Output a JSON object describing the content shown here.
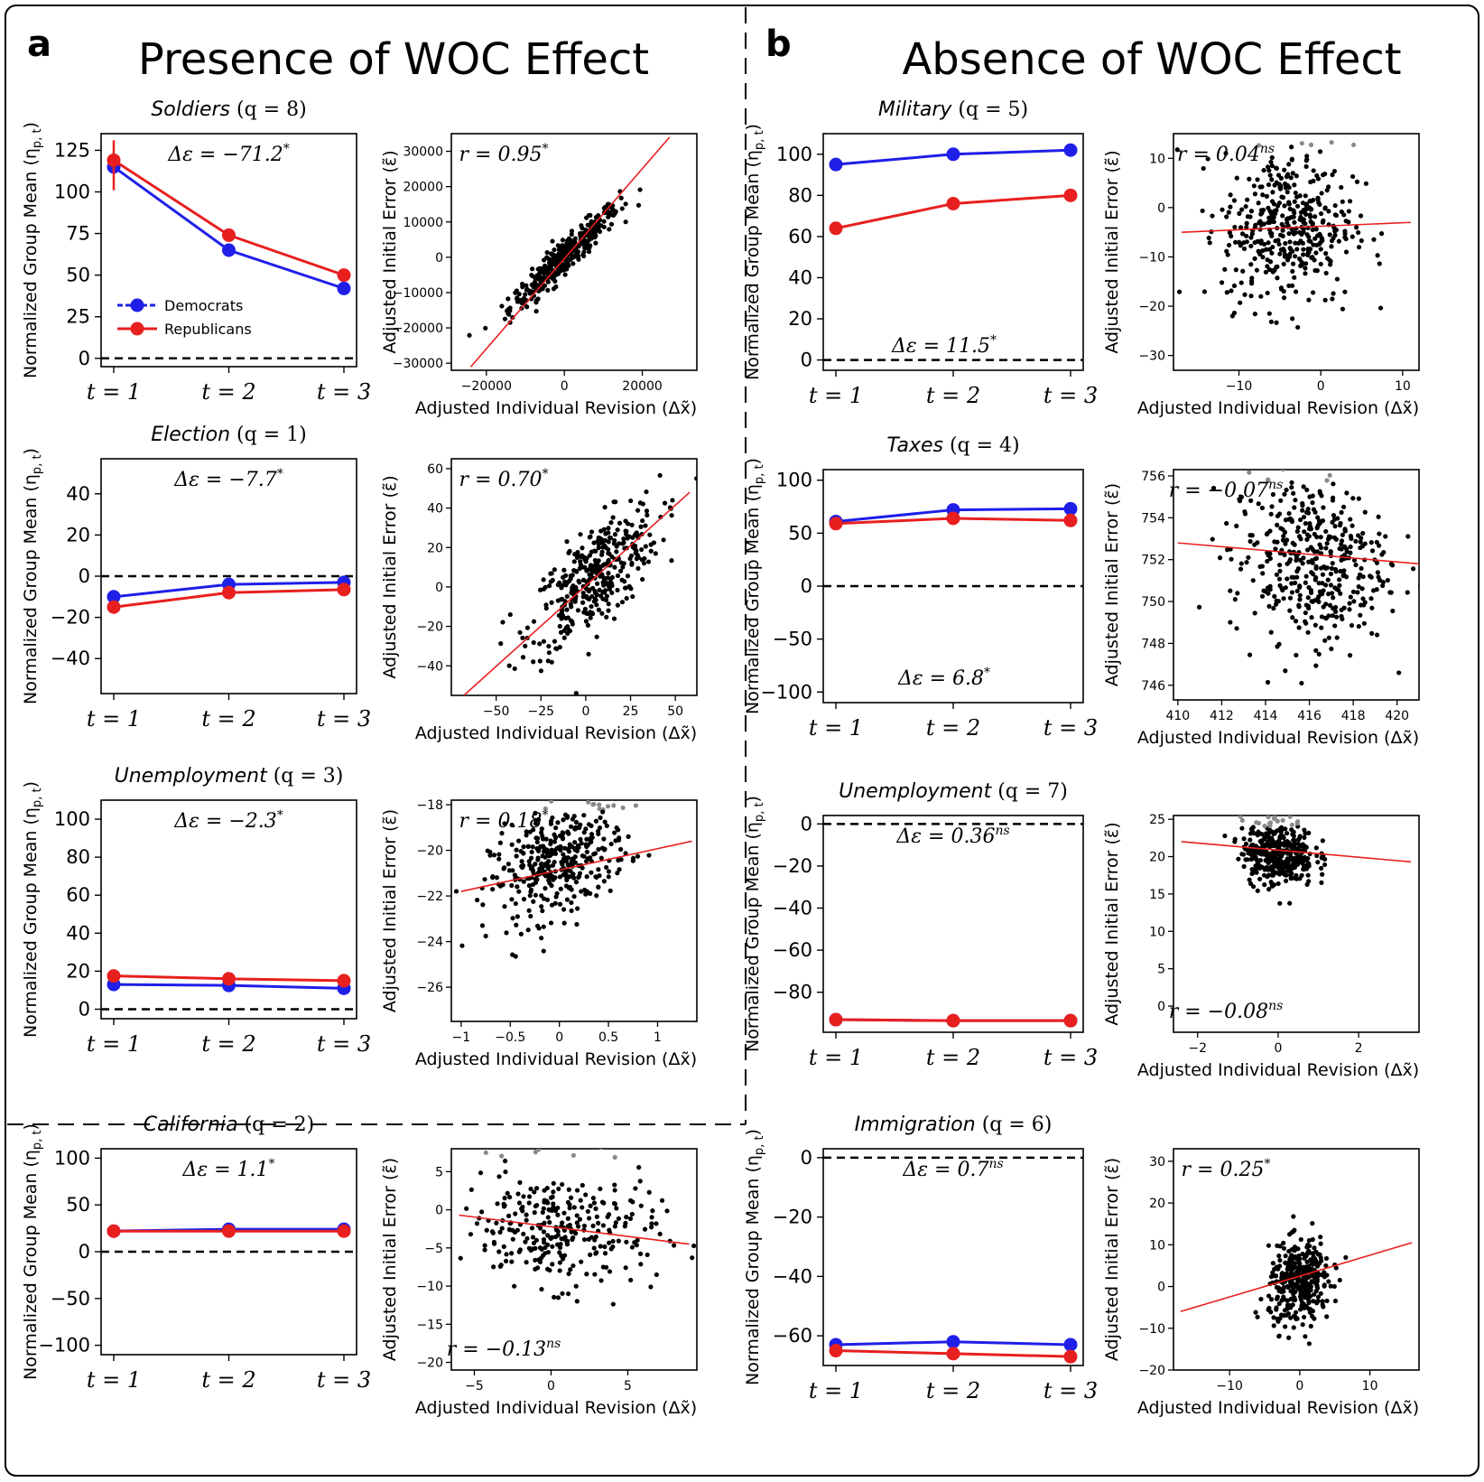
{
  "panels": {
    "a": {
      "letter": "a",
      "title": "Presence of WOC Effect"
    },
    "b": {
      "letter": "b",
      "title": "Absence of WOC Effect"
    }
  },
  "colors": {
    "democrats": "#1f1fe8",
    "republicans": "#e81f1f",
    "fit": "#e81f1f",
    "points": "#000000",
    "outlier_points": "#8a8a8a"
  },
  "common": {
    "time_labels": [
      "t = 1",
      "t = 2",
      "t = 3"
    ],
    "line_ylabel": "Normalized Group Mean (η",
    "line_ylabel_sub": "p, t",
    "scatter_ylabel": "Adjusted Initial Error (ε̃)",
    "scatter_xlabel": "Adjusted Individual Revision (Δx̃)",
    "legend": [
      "Democrats",
      "Republicans"
    ]
  },
  "chart_data": [
    {
      "id": "soldiers",
      "panel": "a",
      "type": "line",
      "title": "Soldiers",
      "q": "q = 8",
      "annotation": "Δε = −71.2*",
      "ylim": [
        -5,
        135
      ],
      "yticks": [
        0,
        25,
        50,
        75,
        100,
        125
      ],
      "series": [
        {
          "name": "Democrats",
          "values": [
            115,
            65,
            42
          ]
        },
        {
          "name": "Republicans",
          "values": [
            119,
            74,
            50
          ]
        }
      ],
      "legend": "center-left"
    },
    {
      "id": "soldiers_scatter",
      "panel": "a",
      "type": "scatter",
      "annotation": "r = 0.95*",
      "annotation_pos": "top",
      "xlim": [
        -29000,
        34000
      ],
      "ylim": [
        -32000,
        35000
      ],
      "xticks": [
        -20000,
        0,
        20000
      ],
      "yticks": [
        -30000,
        -20000,
        -10000,
        0,
        10000,
        20000,
        30000
      ],
      "fit": [
        [
          -24000,
          -31000
        ],
        [
          27000,
          34000
        ]
      ],
      "cloud": {
        "cx": 0,
        "cy": 0,
        "sx": 7000,
        "sy": 7500,
        "corr": 0.95,
        "n": 400
      }
    },
    {
      "id": "election",
      "panel": "a",
      "type": "line",
      "title": "Election",
      "q": "q = 1",
      "annotation": "Δε = −7.7*",
      "ylim": [
        -57,
        57
      ],
      "yticks": [
        -40,
        -20,
        0,
        20,
        40
      ],
      "series": [
        {
          "name": "Democrats",
          "values": [
            -10,
            -4,
            -3
          ]
        },
        {
          "name": "Republicans",
          "values": [
            -15,
            -8,
            -6.5
          ]
        }
      ]
    },
    {
      "id": "election_scatter",
      "panel": "a",
      "type": "scatter",
      "annotation": "r = 0.70*",
      "annotation_pos": "top",
      "xlim": [
        -75,
        62
      ],
      "ylim": [
        -55,
        65
      ],
      "xticks": [
        -50,
        -25,
        0,
        25,
        50
      ],
      "yticks": [
        -40,
        -20,
        0,
        20,
        40,
        60
      ],
      "fit": [
        [
          -68,
          -55
        ],
        [
          58,
          48
        ]
      ],
      "cloud": {
        "cx": 5,
        "cy": 5,
        "sx": 18,
        "sy": 18,
        "corr": 0.7,
        "n": 380
      }
    },
    {
      "id": "unemp3",
      "panel": "a",
      "type": "line",
      "title": "Unemployment",
      "q": "q = 3",
      "annotation": "Δε = −2.3*",
      "ylim": [
        -5,
        110
      ],
      "yticks": [
        0,
        20,
        40,
        60,
        80,
        100
      ],
      "series": [
        {
          "name": "Democrats",
          "values": [
            13,
            12.5,
            11
          ]
        },
        {
          "name": "Republicans",
          "values": [
            17.5,
            16,
            15
          ]
        }
      ]
    },
    {
      "id": "unemp3_scatter",
      "panel": "a",
      "type": "scatter",
      "annotation": "r = 0.18*",
      "annotation_pos": "top",
      "xlim": [
        -1.1,
        1.4
      ],
      "ylim": [
        -27.5,
        -17.8
      ],
      "xticks": [
        -1.0,
        -0.5,
        0.0,
        0.5,
        1.0
      ],
      "yticks": [
        -26,
        -24,
        -22,
        -20,
        -18
      ],
      "fit": [
        [
          -1.0,
          -21.8
        ],
        [
          1.35,
          -19.6
        ]
      ],
      "cloud": {
        "cx": 0.0,
        "cy": -20.5,
        "sx": 0.35,
        "sy": 1.3,
        "corr": 0.45,
        "n": 380
      }
    },
    {
      "id": "california",
      "panel": "a",
      "type": "line",
      "title": "California",
      "q": "q = 2",
      "annotation": "Δε = 1.1*",
      "ylim": [
        -110,
        110
      ],
      "yticks": [
        -100,
        -50,
        0,
        50,
        100
      ],
      "series": [
        {
          "name": "Democrats",
          "values": [
            22,
            24,
            24
          ]
        },
        {
          "name": "Republicans",
          "values": [
            22,
            22,
            22
          ]
        }
      ]
    },
    {
      "id": "california_scatter",
      "panel": "a",
      "type": "scatter",
      "annotation": "r = −0.13ns",
      "annotation_pos": "bottom",
      "xlim": [
        -6.5,
        9.5
      ],
      "ylim": [
        -21,
        8
      ],
      "xticks": [
        -5,
        0,
        5
      ],
      "yticks": [
        -20,
        -15,
        -10,
        -5,
        0,
        5
      ],
      "fit": [
        [
          -6,
          -0.7
        ],
        [
          9,
          -4.5
        ]
      ],
      "cloud": {
        "cx": 0.5,
        "cy": -2.5,
        "sx": 3.2,
        "sy": 3.8,
        "corr": -0.1,
        "n": 300
      }
    },
    {
      "id": "military",
      "panel": "b",
      "type": "line",
      "title": "Military",
      "q": "q = 5",
      "annotation": "Δε = 11.5*",
      "annotation_pos": "bottom",
      "ylim": [
        -5,
        110
      ],
      "yticks": [
        0,
        20,
        40,
        60,
        80,
        100
      ],
      "series": [
        {
          "name": "Democrats",
          "values": [
            95,
            100,
            102
          ]
        },
        {
          "name": "Republicans",
          "values": [
            64,
            76,
            80
          ]
        }
      ]
    },
    {
      "id": "military_scatter",
      "panel": "b",
      "type": "scatter",
      "annotation": "r = 0.04ns",
      "annotation_pos": "top",
      "xlim": [
        -18,
        12
      ],
      "ylim": [
        -33,
        15
      ],
      "xticks": [
        -10,
        0,
        10
      ],
      "yticks": [
        -30,
        -20,
        -10,
        0,
        10
      ],
      "fit": [
        [
          -17,
          -5
        ],
        [
          11,
          -3
        ]
      ],
      "cloud": {
        "cx": -4,
        "cy": -4,
        "sx": 4,
        "sy": 8,
        "corr": 0.04,
        "n": 420
      }
    },
    {
      "id": "taxes",
      "panel": "b",
      "type": "line",
      "title": "Taxes",
      "q": "q = 4",
      "annotation": "Δε = 6.8*",
      "annotation_pos": "bottom",
      "ylim": [
        -110,
        110
      ],
      "yticks": [
        -100,
        -50,
        0,
        50,
        100
      ],
      "series": [
        {
          "name": "Democrats",
          "values": [
            61,
            72,
            73
          ]
        },
        {
          "name": "Republicans",
          "values": [
            59,
            64,
            62
          ]
        }
      ]
    },
    {
      "id": "taxes_scatter",
      "panel": "b",
      "type": "scatter",
      "annotation": "r = −0.07ns",
      "annotation_pos": "top",
      "xlim": [
        409.8,
        421
      ],
      "ylim": [
        745.3,
        756.3
      ],
      "xticks": [
        410,
        412,
        414,
        416,
        418,
        420
      ],
      "yticks": [
        746,
        748,
        750,
        752,
        754,
        756
      ],
      "fit": [
        [
          410,
          752.8
        ],
        [
          421,
          751.8
        ]
      ],
      "cloud": {
        "cx": 416,
        "cy": 752,
        "sx": 1.8,
        "sy": 2.0,
        "corr": -0.07,
        "n": 420
      }
    },
    {
      "id": "unemp7",
      "panel": "b",
      "type": "line",
      "title": "Unemployment",
      "q": "q = 7",
      "annotation": "Δε = 0.36ns",
      "ylim": [
        -99,
        4
      ],
      "yticks": [
        -80,
        -60,
        -40,
        -20,
        0
      ],
      "series": [
        {
          "name": "Democrats",
          "values": [
            -93,
            -93.5,
            -93.5
          ]
        },
        {
          "name": "Republicans",
          "values": [
            -93,
            -93.5,
            -93.5
          ]
        }
      ]
    },
    {
      "id": "unemp7_scatter",
      "panel": "b",
      "type": "scatter",
      "annotation": "r = −0.08ns",
      "annotation_pos": "bottom",
      "xlim": [
        -2.6,
        3.5
      ],
      "ylim": [
        -3.5,
        25.5
      ],
      "xticks": [
        -2,
        0,
        2
      ],
      "yticks": [
        0,
        5,
        10,
        15,
        20,
        25
      ],
      "fit": [
        [
          -2.4,
          22
        ],
        [
          3.3,
          19.3
        ]
      ],
      "cloud": {
        "cx": 0.0,
        "cy": 20.5,
        "sx": 0.45,
        "sy": 2.2,
        "corr": -0.05,
        "n": 380
      }
    },
    {
      "id": "immigration",
      "panel": "b",
      "type": "line",
      "title": "Immigration",
      "q": "q = 6",
      "annotation": "Δε = 0.7ns",
      "ylim": [
        -70,
        3
      ],
      "yticks": [
        -60,
        -40,
        -20,
        0
      ],
      "series": [
        {
          "name": "Democrats",
          "values": [
            -63,
            -62,
            -63
          ]
        },
        {
          "name": "Republicans",
          "values": [
            -65,
            -66,
            -67
          ]
        }
      ]
    },
    {
      "id": "immigration_scatter",
      "panel": "b",
      "type": "scatter",
      "annotation": "r = 0.25*",
      "annotation_pos": "top",
      "xlim": [
        -18,
        17
      ],
      "ylim": [
        -20,
        33
      ],
      "xticks": [
        -10,
        0,
        10
      ],
      "yticks": [
        -20,
        -10,
        0,
        10,
        20,
        30
      ],
      "fit": [
        [
          -17,
          -6
        ],
        [
          16,
          10.5
        ]
      ],
      "cloud": {
        "cx": 0,
        "cy": 1,
        "sx": 2.2,
        "sy": 5,
        "corr": 0.2,
        "n": 360
      }
    }
  ]
}
